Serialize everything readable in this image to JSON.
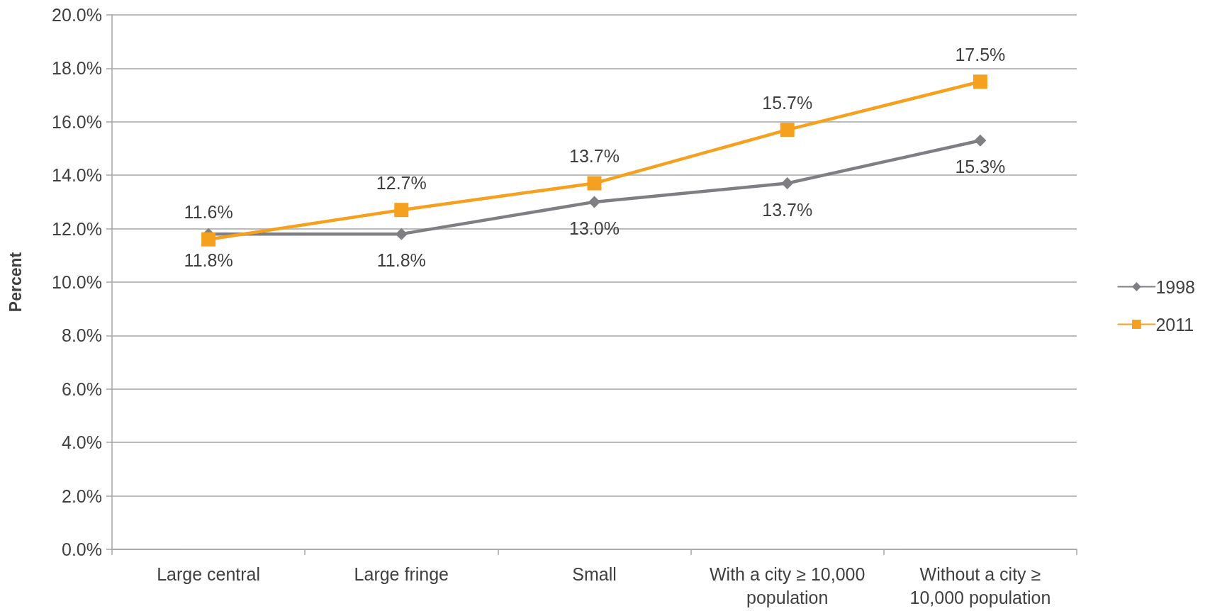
{
  "chart_data": {
    "type": "line",
    "ylabel": "Percent",
    "categories": [
      "Large central",
      "Large fringe",
      "Small",
      "With a city ≥ 10,000 population",
      "Without a city ≥ 10,000 population"
    ],
    "series": [
      {
        "name": "1998",
        "color": "#7f7f83",
        "marker": "diamond",
        "values": [
          11.8,
          11.8,
          13.0,
          13.7,
          15.3
        ],
        "value_labels": [
          "11.8%",
          "11.8%",
          "13.0%",
          "13.7%",
          "15.3%"
        ]
      },
      {
        "name": "2011",
        "color": "#f5a01f",
        "marker": "square",
        "values": [
          11.6,
          12.7,
          13.7,
          15.7,
          17.5
        ],
        "value_labels": [
          "11.6%",
          "12.7%",
          "13.7%",
          "15.7%",
          "17.5%"
        ]
      }
    ],
    "ylim": [
      0,
      20
    ],
    "yticks": [
      {
        "value": 0,
        "label": "0.0%"
      },
      {
        "value": 2,
        "label": "2.0%"
      },
      {
        "value": 4,
        "label": "4.0%"
      },
      {
        "value": 6,
        "label": "6.0%"
      },
      {
        "value": 8,
        "label": "8.0%"
      },
      {
        "value": 10,
        "label": "10.0%"
      },
      {
        "value": 12,
        "label": "12.0%"
      },
      {
        "value": 14,
        "label": "14.0%"
      },
      {
        "value": 16,
        "label": "16.0%"
      },
      {
        "value": 18,
        "label": "18.0%"
      },
      {
        "value": 20,
        "label": "20.0%"
      }
    ],
    "grid": "y",
    "legend": "right",
    "line_style": "solid"
  }
}
